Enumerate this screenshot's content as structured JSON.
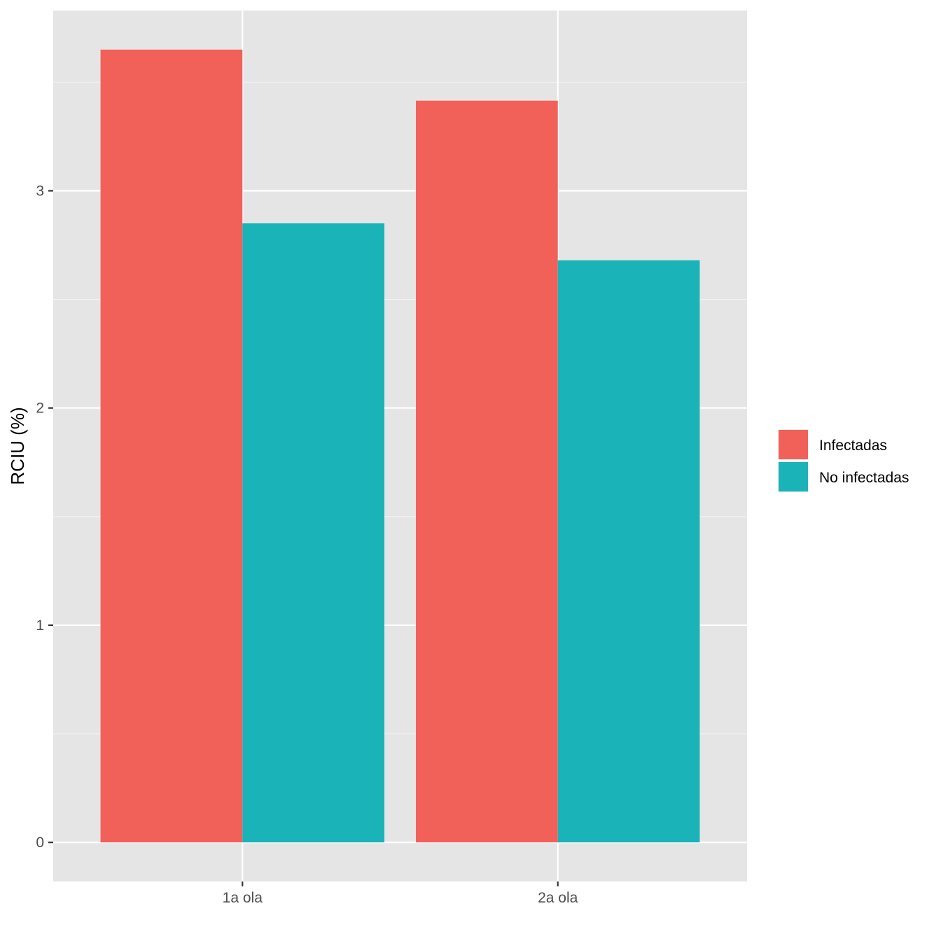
{
  "chart_data": {
    "type": "bar",
    "title": "",
    "xlabel": "",
    "ylabel": "RCIU (%)",
    "categories": [
      "1a ola",
      "2a ola"
    ],
    "series": [
      {
        "name": "Infectadas",
        "values": [
          3.65,
          3.415
        ],
        "color": "#F2605A"
      },
      {
        "name": "No infectadas",
        "values": [
          2.85,
          2.68
        ],
        "color": "#1AB3B8"
      }
    ],
    "ylim": [
      -0.18,
      3.83
    ],
    "yticks": [
      0,
      1,
      2,
      3
    ],
    "grid": true,
    "legend_position": "right",
    "panel_background": "#E5E5E5"
  }
}
